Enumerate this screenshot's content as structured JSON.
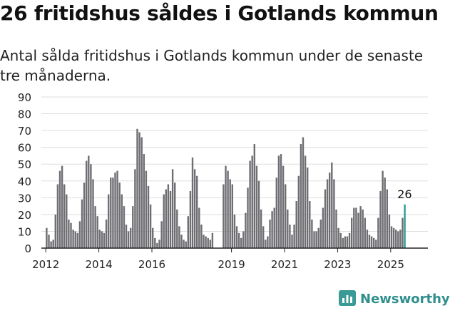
{
  "header": {
    "title": "26 fritidshus såldes i Gotlands kommun",
    "subtitle": "Antal sålda fritidshus i Gotlands kommun under de senaste tre månaderna."
  },
  "brand": {
    "name": "Newsworthy",
    "icon": "newsworthy-logo-icon",
    "color": "#3a9a95"
  },
  "colors": {
    "bar": "#6e6e73",
    "highlight": "#2a9d9a",
    "grid": "#dddddd",
    "axis": "#222222"
  },
  "chart_data": {
    "type": "bar",
    "ylim": [
      0,
      90
    ],
    "yticks": [
      "0",
      "10",
      "20",
      "30",
      "40",
      "50",
      "60",
      "70",
      "80",
      "90"
    ],
    "xticks": [
      {
        "label": "2012",
        "month": "2012-01"
      },
      {
        "label": "2014",
        "month": "2014-01"
      },
      {
        "label": "2016",
        "month": "2016-01"
      },
      {
        "label": "2019",
        "month": "2019-01"
      },
      {
        "label": "2021",
        "month": "2021-01"
      },
      {
        "label": "2023",
        "month": "2023-01"
      },
      {
        "label": "2025",
        "month": "2025-01"
      }
    ],
    "highlight_label": "26",
    "series": [
      {
        "start": "2012-01",
        "values": [
          12,
          8,
          4,
          5,
          20,
          38,
          46,
          49,
          38,
          32,
          17,
          15,
          11,
          10,
          9,
          16,
          29,
          39,
          52,
          55,
          50,
          41,
          25,
          19,
          11,
          10,
          9,
          17,
          32,
          42,
          42,
          45,
          46,
          39,
          32,
          25,
          14,
          10,
          12,
          25,
          47,
          71,
          69,
          66,
          56,
          46,
          37,
          26,
          12,
          6,
          3,
          5,
          16,
          32,
          35,
          38,
          34,
          47,
          39,
          23,
          13,
          8,
          5,
          4,
          19,
          34,
          54,
          47,
          43,
          24,
          14,
          8,
          7,
          6,
          5,
          9
        ]
      },
      {
        "start": "2018-09",
        "values": [
          38,
          49,
          46,
          41,
          38,
          20,
          13,
          9,
          6,
          10,
          21,
          36,
          52,
          55,
          62,
          49,
          40,
          23,
          13,
          5,
          7,
          17,
          22,
          24,
          42,
          55,
          56,
          49,
          38,
          23,
          14,
          8,
          14,
          28,
          43,
          62,
          66,
          55,
          48,
          28,
          17,
          10,
          10,
          12,
          17,
          24,
          35,
          41,
          45,
          51,
          41,
          23,
          12,
          9,
          6,
          7,
          7,
          9,
          18,
          24,
          24,
          21,
          25,
          23,
          18,
          11,
          8,
          7,
          6,
          5,
          18,
          34,
          46,
          42,
          35,
          20,
          13,
          12,
          11,
          10,
          11,
          18,
          26
        ]
      }
    ]
  }
}
